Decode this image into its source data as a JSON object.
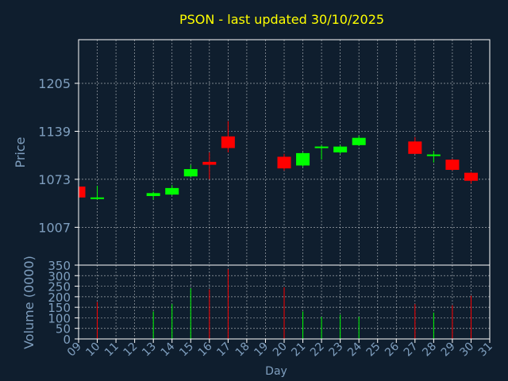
{
  "title": "PSON - last updated 30/10/2025",
  "colors": {
    "background": "#0f1e2e",
    "title": "#ffff00",
    "axis_text": "#7f9fbf",
    "frame": "#ffffff",
    "grid": "#ffffff",
    "up": "#00ff00",
    "down": "#ff0000",
    "xtick_label": "#7f9fbf"
  },
  "chart_data": [
    {
      "type": "candlestick",
      "ylabel": "Price",
      "ylim": [
        955,
        1265
      ],
      "yticks": [
        1007,
        1073,
        1139,
        1205
      ],
      "xlim": [
        9,
        31
      ],
      "grid": true,
      "candles": [
        {
          "day": 9,
          "open": 1063,
          "high": 1063,
          "low": 1047,
          "close": 1048
        },
        {
          "day": 10,
          "open": 1047,
          "high": 1064,
          "low": 1045,
          "close": 1047
        },
        {
          "day": 13,
          "open": 1050,
          "high": 1056,
          "low": 1045,
          "close": 1054
        },
        {
          "day": 14,
          "open": 1052,
          "high": 1065,
          "low": 1051,
          "close": 1061
        },
        {
          "day": 15,
          "open": 1077,
          "high": 1093,
          "low": 1076,
          "close": 1087
        },
        {
          "day": 16,
          "open": 1097,
          "high": 1110,
          "low": 1073,
          "close": 1093
        },
        {
          "day": 17,
          "open": 1132,
          "high": 1153,
          "low": 1110,
          "close": 1116
        },
        {
          "day": 20,
          "open": 1104,
          "high": 1108,
          "low": 1085,
          "close": 1088
        },
        {
          "day": 21,
          "open": 1092,
          "high": 1110,
          "low": 1090,
          "close": 1109
        },
        {
          "day": 22,
          "open": 1116,
          "high": 1120,
          "low": 1100,
          "close": 1117
        },
        {
          "day": 23,
          "open": 1110,
          "high": 1120,
          "low": 1108,
          "close": 1118
        },
        {
          "day": 24,
          "open": 1120,
          "high": 1133,
          "low": 1119,
          "close": 1130
        },
        {
          "day": 27,
          "open": 1125,
          "high": 1131,
          "low": 1108,
          "close": 1108
        },
        {
          "day": 28,
          "open": 1105,
          "high": 1112,
          "low": 1096,
          "close": 1106
        },
        {
          "day": 29,
          "open": 1100,
          "high": 1101,
          "low": 1085,
          "close": 1086
        },
        {
          "day": 30,
          "open": 1082,
          "high": 1083,
          "low": 1067,
          "close": 1071
        }
      ]
    },
    {
      "type": "bar",
      "ylabel": "Volume (0000)",
      "xlabel": "Day",
      "ylim": [
        0,
        350
      ],
      "yticks": [
        0,
        50,
        100,
        150,
        200,
        250,
        300,
        350
      ],
      "x_ticks": [
        "09",
        "10",
        "11",
        "12",
        "13",
        "14",
        "15",
        "16",
        "17",
        "18",
        "19",
        "20",
        "21",
        "22",
        "23",
        "24",
        "25",
        "26",
        "27",
        "28",
        "29",
        "30",
        "31"
      ],
      "xlim": [
        9,
        31
      ],
      "grid": true,
      "bars": [
        {
          "day": 10,
          "value": 175,
          "direction": "down"
        },
        {
          "day": 13,
          "value": 130,
          "direction": "up"
        },
        {
          "day": 14,
          "value": 165,
          "direction": "up"
        },
        {
          "day": 15,
          "value": 240,
          "direction": "up"
        },
        {
          "day": 16,
          "value": 235,
          "direction": "down"
        },
        {
          "day": 17,
          "value": 330,
          "direction": "down"
        },
        {
          "day": 20,
          "value": 245,
          "direction": "down"
        },
        {
          "day": 21,
          "value": 130,
          "direction": "up"
        },
        {
          "day": 22,
          "value": 105,
          "direction": "up"
        },
        {
          "day": 23,
          "value": 115,
          "direction": "up"
        },
        {
          "day": 24,
          "value": 105,
          "direction": "up"
        },
        {
          "day": 27,
          "value": 165,
          "direction": "down"
        },
        {
          "day": 28,
          "value": 125,
          "direction": "up"
        },
        {
          "day": 29,
          "value": 160,
          "direction": "down"
        },
        {
          "day": 30,
          "value": 205,
          "direction": "down"
        }
      ]
    }
  ]
}
